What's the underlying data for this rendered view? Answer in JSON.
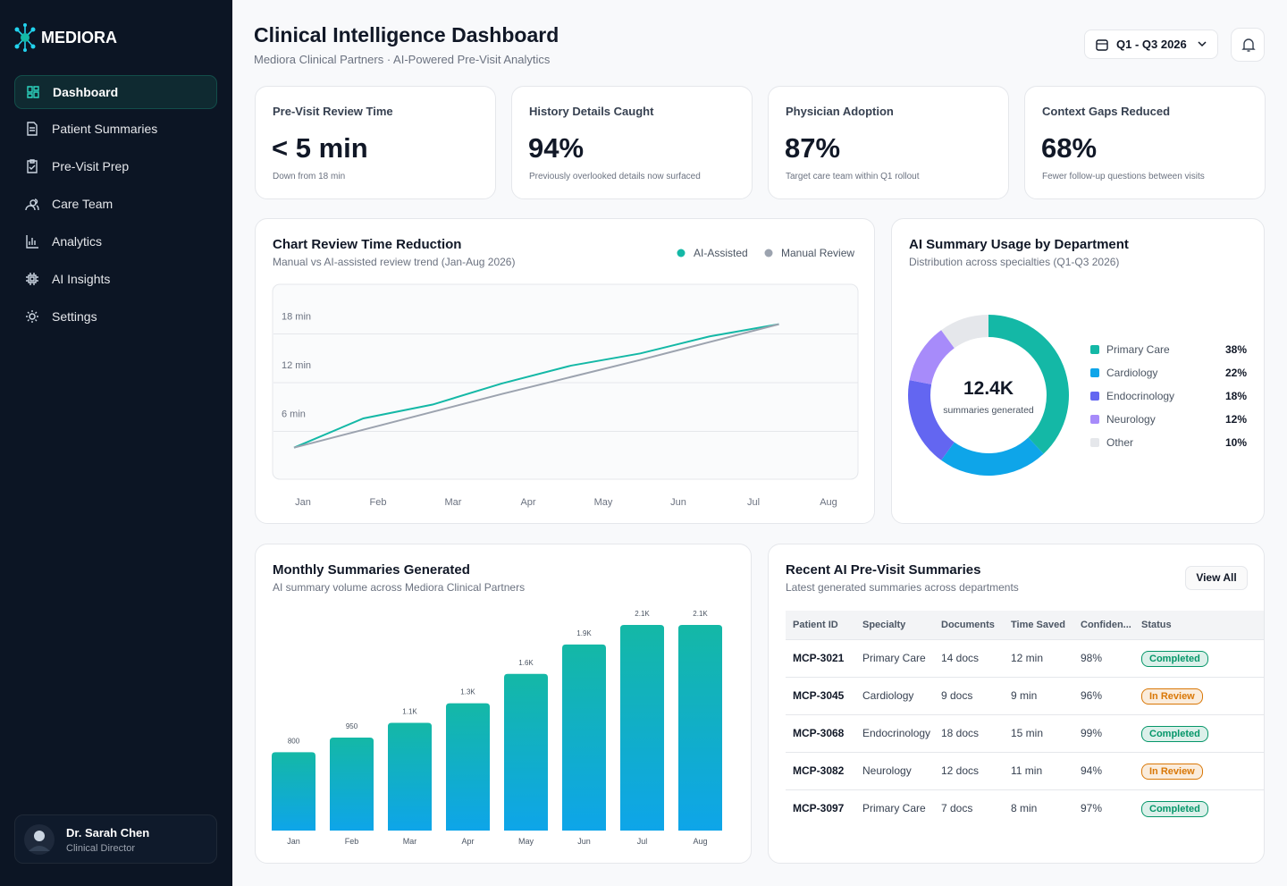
{
  "sidebar": {
    "brand": "MEDIORA",
    "nav": [
      "Dashboard",
      "Patient Summaries",
      "Pre-Visit Prep",
      "Care Team",
      "Analytics",
      "AI Insights",
      "Settings"
    ],
    "user": {
      "name": "Dr. Sarah Chen",
      "role": "Clinical Director"
    }
  },
  "header": {
    "title": "Clinical Intelligence Dashboard",
    "subtitle": "Mediora Clinical Partners · AI-Powered Pre-Visit Analytics",
    "date_range": "Q1 - Q3 2026"
  },
  "kpis": [
    {
      "label": "Pre-Visit Review Time",
      "value": "< 5 min",
      "note": "Down from 18 min"
    },
    {
      "label": "History Details Caught",
      "value": "94%",
      "note": "Previously overlooked details now surfaced"
    },
    {
      "label": "Physician Adoption",
      "value": "87%",
      "note": "Target care team within Q1 rollout"
    },
    {
      "label": "Context Gaps Reduced",
      "value": "68%",
      "note": "Fewer follow-up questions between visits"
    }
  ],
  "chart_data": [
    {
      "type": "line",
      "title": "Chart Review Time Reduction",
      "subtitle": "Manual vs AI-assisted review trend (Jan-Aug 2026)",
      "categories": [
        "Jan",
        "Feb",
        "Mar",
        "Apr",
        "May",
        "Jun",
        "Jul",
        "Aug"
      ],
      "series": [
        {
          "name": "AI-Assisted",
          "color": "#14b8a6",
          "values": [
            4,
            7.6,
            9.3,
            11.9,
            14.1,
            15.6,
            17.7,
            19.2
          ]
        },
        {
          "name": "Manual Review",
          "color": "#9ca3af",
          "values": [
            4,
            6.2,
            8.4,
            10.6,
            12.7,
            14.8,
            17,
            19.2
          ]
        }
      ],
      "ylim": [
        0,
        24
      ],
      "yticks": [
        {
          "value": 18,
          "label": "18 min"
        },
        {
          "value": 12,
          "label": "12 min"
        },
        {
          "value": 6,
          "label": "6 min"
        }
      ],
      "grid": true
    },
    {
      "type": "pie",
      "title": "AI Summary Usage by Department",
      "subtitle": "Distribution across specialties (Q1-Q3 2026)",
      "center_value": "12.4K",
      "center_label": "summaries generated",
      "categories": [
        "Primary Care",
        "Cardiology",
        "Endocrinology",
        "Neurology",
        "Other"
      ],
      "values": [
        38,
        22,
        18,
        12,
        10
      ],
      "value_labels": [
        "38%",
        "22%",
        "18%",
        "12%",
        "10%"
      ],
      "colors": [
        "#14b8a6",
        "#0ea5e9",
        "#6366f1",
        "#a78bfa",
        "#e5e7eb"
      ]
    },
    {
      "type": "bar",
      "title": "Monthly Summaries Generated",
      "subtitle": "AI summary volume across Mediora Clinical Partners",
      "categories": [
        "Jan",
        "Feb",
        "Mar",
        "Apr",
        "May",
        "Jun",
        "Jul",
        "Aug"
      ],
      "values": [
        800,
        950,
        1100,
        1300,
        1600,
        1900,
        2100,
        2100
      ],
      "value_labels": [
        "800",
        "950",
        "1.1K",
        "1.3K",
        "1.6K",
        "1.9K",
        "2.1K",
        "2.1K"
      ],
      "colors": [
        "#14b8a6",
        "#0ea5e9"
      ]
    }
  ],
  "table": {
    "title": "Recent AI Pre-Visit Summaries",
    "subtitle": "Latest generated summaries across departments",
    "action": "View All",
    "columns": [
      "Patient ID",
      "Specialty",
      "Documents",
      "Time Saved",
      "Confiden...",
      "Status"
    ],
    "rows": [
      [
        "MCP-3021",
        "Primary Care",
        "14 docs",
        "12 min",
        "98%",
        {
          "label": "Completed",
          "color": "#059669"
        }
      ],
      [
        "MCP-3045",
        "Cardiology",
        "9 docs",
        "9 min",
        "96%",
        {
          "label": "In Review",
          "color": "#d97706"
        }
      ],
      [
        "MCP-3068",
        "Endocrinology",
        "18 docs",
        "15 min",
        "99%",
        {
          "label": "Completed",
          "color": "#059669"
        }
      ],
      [
        "MCP-3082",
        "Neurology",
        "12 docs",
        "11 min",
        "94%",
        {
          "label": "In Review",
          "color": "#d97706"
        }
      ],
      [
        "MCP-3097",
        "Primary Care",
        "7 docs",
        "8 min",
        "97%",
        {
          "label": "Completed",
          "color": "#059669"
        }
      ]
    ]
  }
}
